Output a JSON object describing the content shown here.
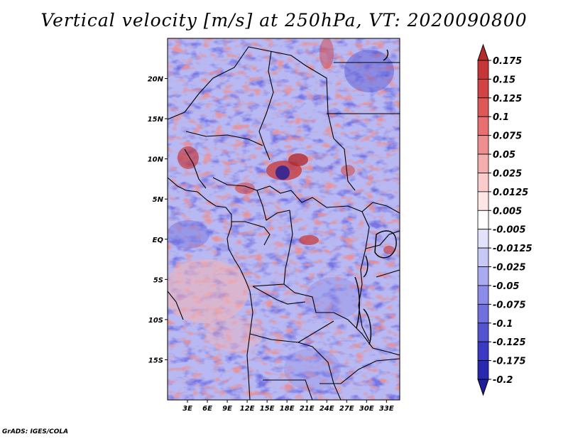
{
  "title": "Vertical velocity [m/s] at 250hPa, VT: 2020090800",
  "credit": "GrADS: IGES/COLA",
  "map": {
    "lat_ticks": [
      "20N",
      "15N",
      "10N",
      "5N",
      "EQ",
      "5S",
      "10S",
      "15S"
    ],
    "lon_ticks": [
      "3E",
      "6E",
      "9E",
      "12E",
      "15E",
      "18E",
      "21E",
      "24E",
      "27E",
      "30E",
      "33E"
    ],
    "lat_values": [
      20,
      15,
      10,
      5,
      0,
      -5,
      -10,
      -15
    ],
    "lon_values": [
      3,
      6,
      9,
      12,
      15,
      18,
      21,
      24,
      27,
      30,
      33
    ],
    "lat_range": [
      -20,
      25
    ],
    "lon_range": [
      0,
      35
    ],
    "field_pattern": "mixed red/blue speckle; strongest red (upward) cores near 8N 15-18E and 10N 3E; strongest blue near 7N 17E; larger light-red region over Atlantic south of equator"
  },
  "colorbar": {
    "labels": [
      "0.175",
      "0.15",
      "0.125",
      "0.1",
      "0.075",
      "0.05",
      "0.025",
      "0.0125",
      "0.005",
      "-0.005",
      "-0.0125",
      "-0.025",
      "-0.05",
      "-0.075",
      "-0.1",
      "-0.125",
      "-0.175",
      "-0.2"
    ],
    "colors": [
      "#b52a2a",
      "#c63636",
      "#d24444",
      "#de5858",
      "#e87070",
      "#ef8e8e",
      "#f5aeae",
      "#facccc",
      "#fde6e6",
      "#ffffff",
      "#e2e2fa",
      "#c8c8f6",
      "#aaaaf0",
      "#8c8ce8",
      "#7070de",
      "#5454d0",
      "#3a3ac2",
      "#2828b0",
      "#1e1e9a"
    ]
  }
}
